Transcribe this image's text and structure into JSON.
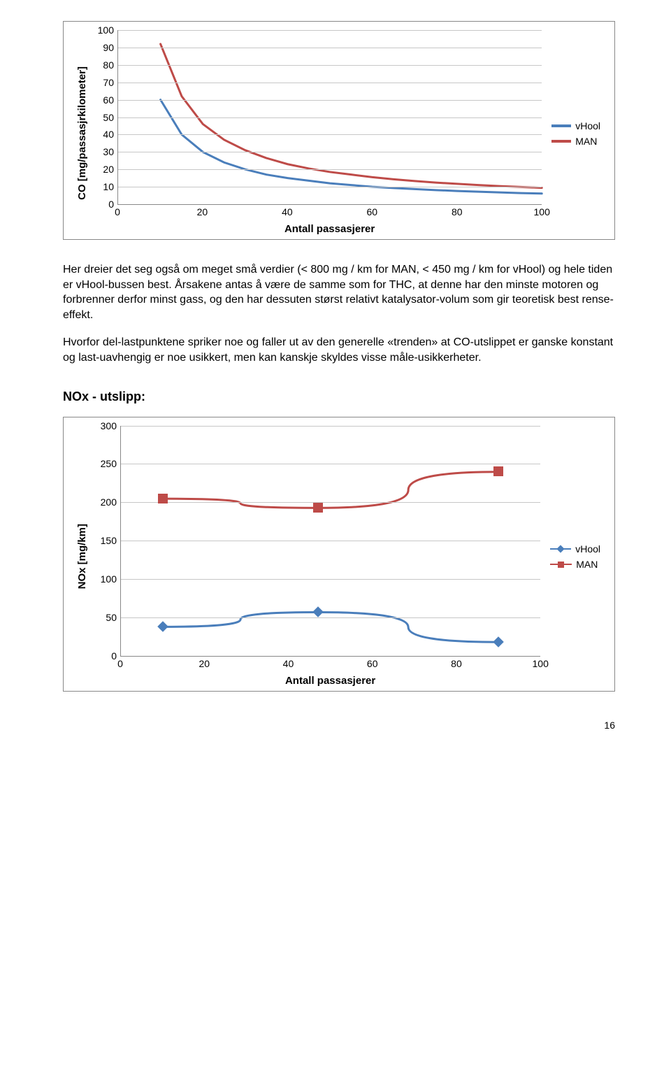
{
  "chart1": {
    "type": "line",
    "ylabel": "CO [mg/passasjrkilometer]",
    "xlabel": "Antall passasjerer",
    "xlim": [
      0,
      100
    ],
    "ylim": [
      0,
      100
    ],
    "xticks": [
      0,
      20,
      40,
      60,
      80,
      100
    ],
    "yticks": [
      0,
      10,
      20,
      30,
      40,
      50,
      60,
      70,
      80,
      90,
      100
    ],
    "grid_color": "#c7c7c7",
    "background_color": "#ffffff",
    "line_width": 3,
    "series": [
      {
        "name": "vHool",
        "color": "#4a7ebb",
        "points": [
          [
            10,
            60
          ],
          [
            15,
            40
          ],
          [
            20,
            30
          ],
          [
            25,
            24
          ],
          [
            30,
            20
          ],
          [
            35,
            17
          ],
          [
            40,
            15
          ],
          [
            45,
            13.5
          ],
          [
            50,
            12
          ],
          [
            55,
            11
          ],
          [
            60,
            10
          ],
          [
            65,
            9.3
          ],
          [
            70,
            8.7
          ],
          [
            75,
            8.1
          ],
          [
            80,
            7.6
          ],
          [
            85,
            7.2
          ],
          [
            90,
            6.8
          ],
          [
            95,
            6.4
          ],
          [
            100,
            6.1
          ]
        ]
      },
      {
        "name": "MAN",
        "color": "#be4b48",
        "points": [
          [
            10,
            92
          ],
          [
            15,
            62
          ],
          [
            20,
            46
          ],
          [
            25,
            37
          ],
          [
            30,
            31
          ],
          [
            35,
            26.5
          ],
          [
            40,
            23
          ],
          [
            45,
            20.5
          ],
          [
            50,
            18.5
          ],
          [
            55,
            17
          ],
          [
            60,
            15.5
          ],
          [
            65,
            14.3
          ],
          [
            70,
            13.3
          ],
          [
            75,
            12.4
          ],
          [
            80,
            11.7
          ],
          [
            85,
            11
          ],
          [
            90,
            10.4
          ],
          [
            95,
            9.9
          ],
          [
            100,
            9.4
          ]
        ]
      }
    ],
    "legend": [
      "vHool",
      "MAN"
    ]
  },
  "para1": "Her dreier det seg også om meget små verdier (< 800 mg / km for MAN, < 450 mg / km for vHool) og hele tiden er vHool-bussen best. Årsakene antas å være de samme som for THC, at denne har den minste motoren og forbrenner derfor minst gass, og den har dessuten størst relativt katalysator-volum som gir teoretisk best rense-effekt.",
  "para2": "Hvorfor del-lastpunktene spriker noe og faller ut av den generelle «trenden» at CO-utslippet er ganske konstant og last-uavhengig er noe usikkert, men kan kanskje skyldes visse måle-usikkerheter.",
  "section_nox": "NOx - utslipp:",
  "chart2": {
    "type": "line-marker",
    "ylabel": "NOx [mg/km]",
    "xlabel": "Antall passasjerer",
    "xlim": [
      0,
      100
    ],
    "ylim": [
      0,
      300
    ],
    "xticks": [
      0,
      20,
      40,
      60,
      80,
      100
    ],
    "yticks": [
      0,
      50,
      100,
      150,
      200,
      250,
      300
    ],
    "grid_color": "#c7c7c7",
    "background_color": "#ffffff",
    "line_width": 3,
    "series_vhool": {
      "name": "vHool",
      "color": "#4a7ebb",
      "marker": "diamond",
      "points": [
        [
          10,
          38
        ],
        [
          47,
          57
        ],
        [
          90,
          18
        ]
      ]
    },
    "series_man": {
      "name": "MAN",
      "color": "#be4b48",
      "marker": "square",
      "points": [
        [
          10,
          205
        ],
        [
          47,
          193
        ],
        [
          90,
          240
        ]
      ]
    },
    "legend": [
      "vHool",
      "MAN"
    ]
  },
  "page_number": "16"
}
